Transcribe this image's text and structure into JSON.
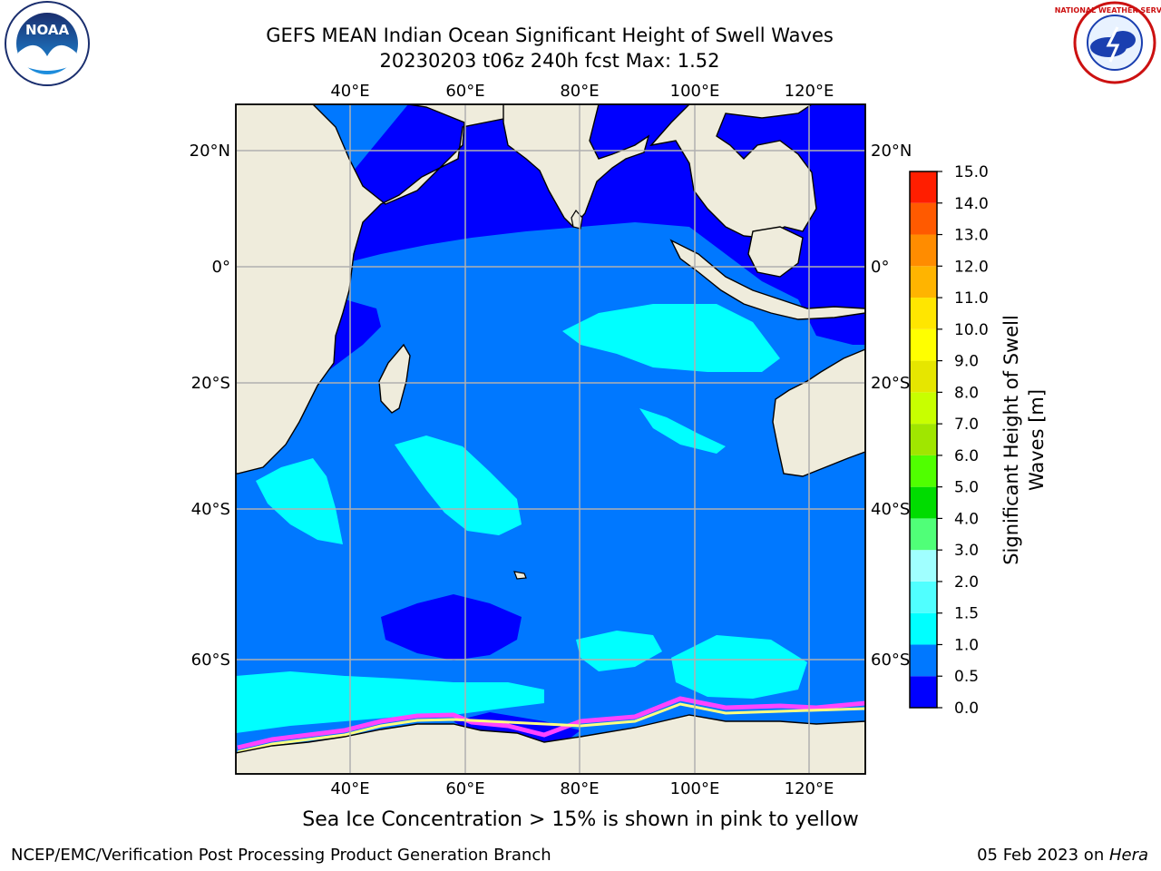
{
  "title": {
    "line1": "GEFS MEAN Indian Ocean Significant Height of Swell Waves",
    "line2": "20230203 t06z 240h fcst   Max: 1.52"
  },
  "map": {
    "lon_labels": [
      "40°E",
      "60°E",
      "80°E",
      "100°E",
      "120°E"
    ],
    "lat_labels": [
      "20°N",
      "0°",
      "20°S",
      "40°S",
      "60°S"
    ],
    "colors": {
      "land": "#efecdc",
      "ocean_0": "#0000ff",
      "ocean_05": "#0078ff",
      "ocean_10": "#00ffff",
      "grid": "#b0b0b0",
      "ice_pink": "#ff44ff",
      "ice_yellow": "#ffff80"
    }
  },
  "colorbar": {
    "label_line1": "Significant Height of Swell",
    "label_line2": "Waves [m]",
    "ticks": [
      "0.0",
      "0.5",
      "1.0",
      "1.5",
      "2.0",
      "3.0",
      "4.0",
      "5.0",
      "6.0",
      "7.0",
      "8.0",
      "9.0",
      "10.0",
      "11.0",
      "12.0",
      "13.0",
      "14.0",
      "15.0"
    ],
    "colors": [
      "#0000ff",
      "#0078ff",
      "#00ffff",
      "#50ffff",
      "#a0ffff",
      "#50ff78",
      "#00dc00",
      "#50ff00",
      "#a0e600",
      "#c8ff00",
      "#e6e600",
      "#ffff00",
      "#ffe600",
      "#ffb400",
      "#ff8c00",
      "#ff5a00",
      "#ff1e00"
    ]
  },
  "subtitle": "Sea Ice Concentration > 15% is shown in pink to yellow",
  "footer": {
    "left": "NCEP/EMC/Verification Post Processing Product Generation Branch",
    "right_prefix": "05 Feb 2023 on ",
    "right_host": "Hera"
  },
  "logos": {
    "noaa_text": "NOAA",
    "nws_text": "NATIONAL WEATHER SERVICE"
  }
}
